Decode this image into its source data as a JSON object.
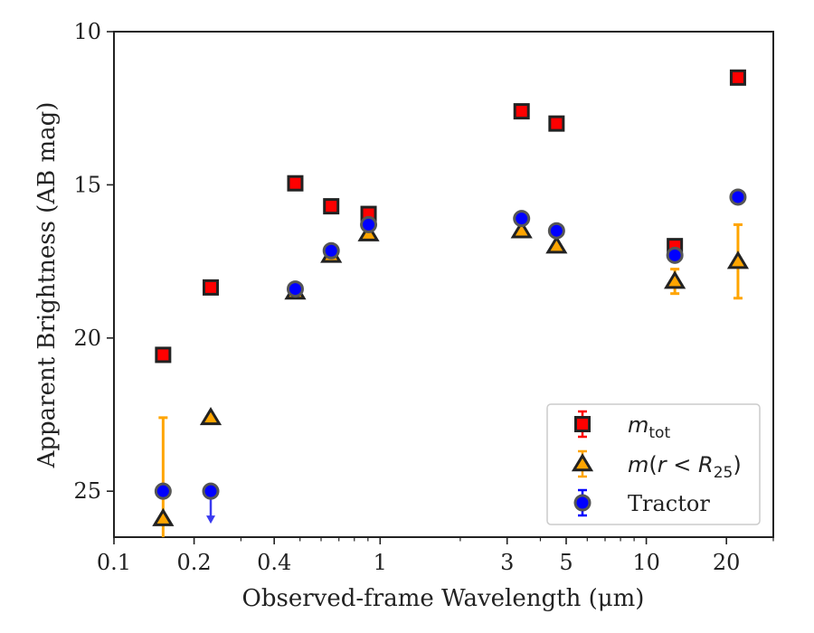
{
  "chart_data": {
    "type": "scatter",
    "xlabel": "Observed-frame Wavelength (μm)",
    "ylabel": "Apparent Brightness (AB mag)",
    "xscale": "log",
    "xlim": [
      0.1,
      30
    ],
    "ylim": [
      26.5,
      10
    ],
    "y_inverted": true,
    "x_ticks": [
      0.1,
      0.2,
      0.4,
      1,
      3,
      5,
      10,
      20
    ],
    "x_tick_labels": [
      "0.1",
      "0.2",
      "0.4",
      "1",
      "3",
      "5",
      "10",
      "20"
    ],
    "y_ticks": [
      10,
      15,
      20,
      25
    ],
    "y_tick_labels": [
      "10",
      "15",
      "20",
      "25"
    ],
    "legend_position": "lower-right",
    "series": [
      {
        "name": "m_tot",
        "legend_label": "m_tot",
        "marker": "square",
        "color": "#ff0000",
        "edge_color": "#222222",
        "points": [
          {
            "x": 0.153,
            "y": 20.55
          },
          {
            "x": 0.231,
            "y": 18.35
          },
          {
            "x": 0.48,
            "y": 14.95
          },
          {
            "x": 0.655,
            "y": 15.7
          },
          {
            "x": 0.905,
            "y": 15.95
          },
          {
            "x": 3.4,
            "y": 12.6
          },
          {
            "x": 4.6,
            "y": 13.0
          },
          {
            "x": 12.8,
            "y": 17.0
          },
          {
            "x": 22.1,
            "y": 11.5
          }
        ]
      },
      {
        "name": "m(r<R25)",
        "legend_label": "m(r < R25)",
        "marker": "triangle",
        "color": "#ffa500",
        "edge_color": "#222222",
        "points": [
          {
            "x": 0.153,
            "y": 25.9,
            "err": [
              3.3,
              0.6
            ]
          },
          {
            "x": 0.231,
            "y": 22.6
          },
          {
            "x": 0.48,
            "y": 18.5
          },
          {
            "x": 0.655,
            "y": 17.3
          },
          {
            "x": 0.905,
            "y": 16.6
          },
          {
            "x": 3.4,
            "y": 16.5
          },
          {
            "x": 4.6,
            "y": 17.0
          },
          {
            "x": 12.8,
            "y": 18.15,
            "err": [
              0.4,
              0.4
            ]
          },
          {
            "x": 22.1,
            "y": 17.5,
            "err": [
              1.2,
              1.2
            ]
          }
        ]
      },
      {
        "name": "Tractor",
        "legend_label": "Tractor",
        "marker": "circle",
        "color": "#0000ff",
        "edge_color": "#222222",
        "points": [
          {
            "x": 0.153,
            "y": 25.0
          },
          {
            "x": 0.231,
            "y": 25.0,
            "upper_limit": true
          },
          {
            "x": 0.48,
            "y": 18.4
          },
          {
            "x": 0.655,
            "y": 17.15
          },
          {
            "x": 0.905,
            "y": 16.3
          },
          {
            "x": 3.4,
            "y": 16.1
          },
          {
            "x": 4.6,
            "y": 16.5
          },
          {
            "x": 12.8,
            "y": 17.3
          },
          {
            "x": 22.1,
            "y": 15.4
          }
        ]
      }
    ]
  }
}
